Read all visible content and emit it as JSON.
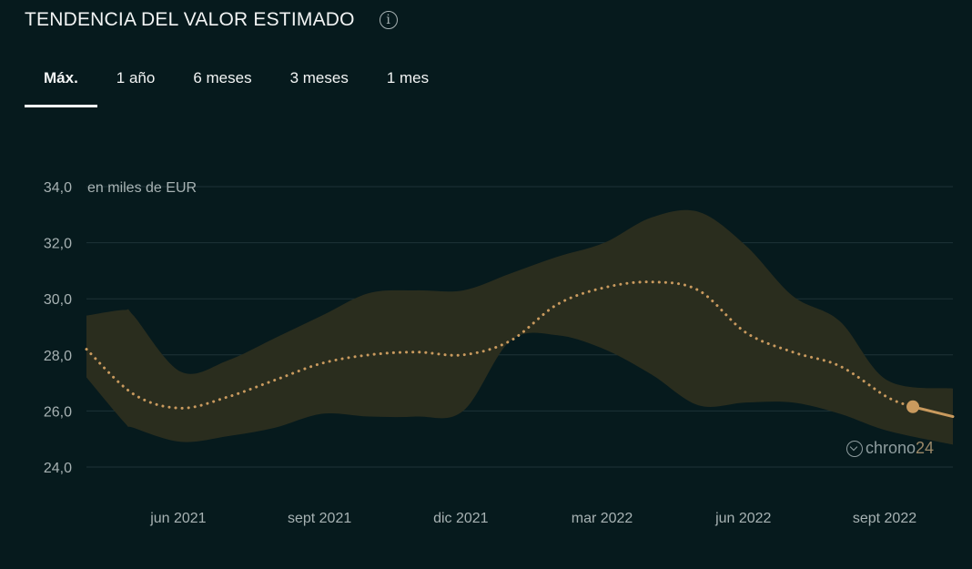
{
  "header": {
    "title": "TENDENCIA DEL VALOR ESTIMADO",
    "info_icon": "info-icon"
  },
  "tabs": [
    {
      "label": "Máx.",
      "active": true
    },
    {
      "label": "1 año",
      "active": false
    },
    {
      "label": "6 meses",
      "active": false
    },
    {
      "label": "3 meses",
      "active": false
    },
    {
      "label": "1 mes",
      "active": false
    }
  ],
  "watermark": {
    "brand": "chrono",
    "number": "24"
  },
  "chart_data": {
    "type": "line",
    "unit_label": "en miles de EUR",
    "y_ticks": [
      "34,0",
      "32,0",
      "30,0",
      "28,0",
      "26,0",
      "24,0"
    ],
    "y_tick_values": [
      34,
      32,
      30,
      28,
      26,
      24
    ],
    "x_ticks": [
      "jun 2021",
      "sept 2021",
      "dic 2021",
      "mar 2022",
      "jun 2022",
      "sept 2022"
    ],
    "x_tick_months": [
      1.95,
      4.95,
      7.95,
      10.95,
      13.95,
      16.95
    ],
    "x_range_months": [
      0,
      18.4
    ],
    "ylim": [
      24,
      34
    ],
    "grid": true,
    "series": [
      {
        "style": "dotted",
        "x": [
          0,
          1,
          2,
          3,
          4,
          5,
          6,
          7,
          8,
          9,
          10,
          11,
          12,
          13,
          14,
          15,
          16,
          17,
          17.55
        ],
        "values": [
          28.2,
          26.6,
          26.1,
          26.5,
          27.1,
          27.7,
          28.0,
          28.1,
          28.0,
          28.5,
          29.8,
          30.4,
          30.6,
          30.3,
          28.8,
          28.1,
          27.6,
          26.5,
          26.15
        ]
      },
      {
        "style": "solid",
        "x": [
          17.55,
          18.4
        ],
        "values": [
          26.15,
          25.8
        ]
      }
    ],
    "band": {
      "x": [
        0,
        0.8,
        1,
        2,
        3,
        4,
        5,
        6,
        7,
        8,
        9,
        10,
        11,
        12,
        13,
        14,
        15,
        16,
        17,
        18.4
      ],
      "upper": [
        29.4,
        29.6,
        29.4,
        27.4,
        27.8,
        28.6,
        29.4,
        30.2,
        30.3,
        30.3,
        30.9,
        31.5,
        32.0,
        32.9,
        33.1,
        31.9,
        30.1,
        29.2,
        27.1,
        26.8
      ],
      "lower": [
        27.2,
        25.6,
        25.4,
        24.9,
        25.1,
        25.4,
        25.9,
        25.8,
        25.8,
        26.0,
        28.5,
        28.7,
        28.2,
        27.3,
        26.2,
        26.3,
        26.3,
        25.9,
        25.3,
        24.8
      ]
    },
    "highlight_point": {
      "x": 17.55,
      "y": 26.15
    },
    "colors": {
      "line": "#c99a5e",
      "band": "#2a2d1e",
      "grid": "#1e3337",
      "tick_text": "#a7b2b3",
      "background": "#061a1d"
    }
  }
}
